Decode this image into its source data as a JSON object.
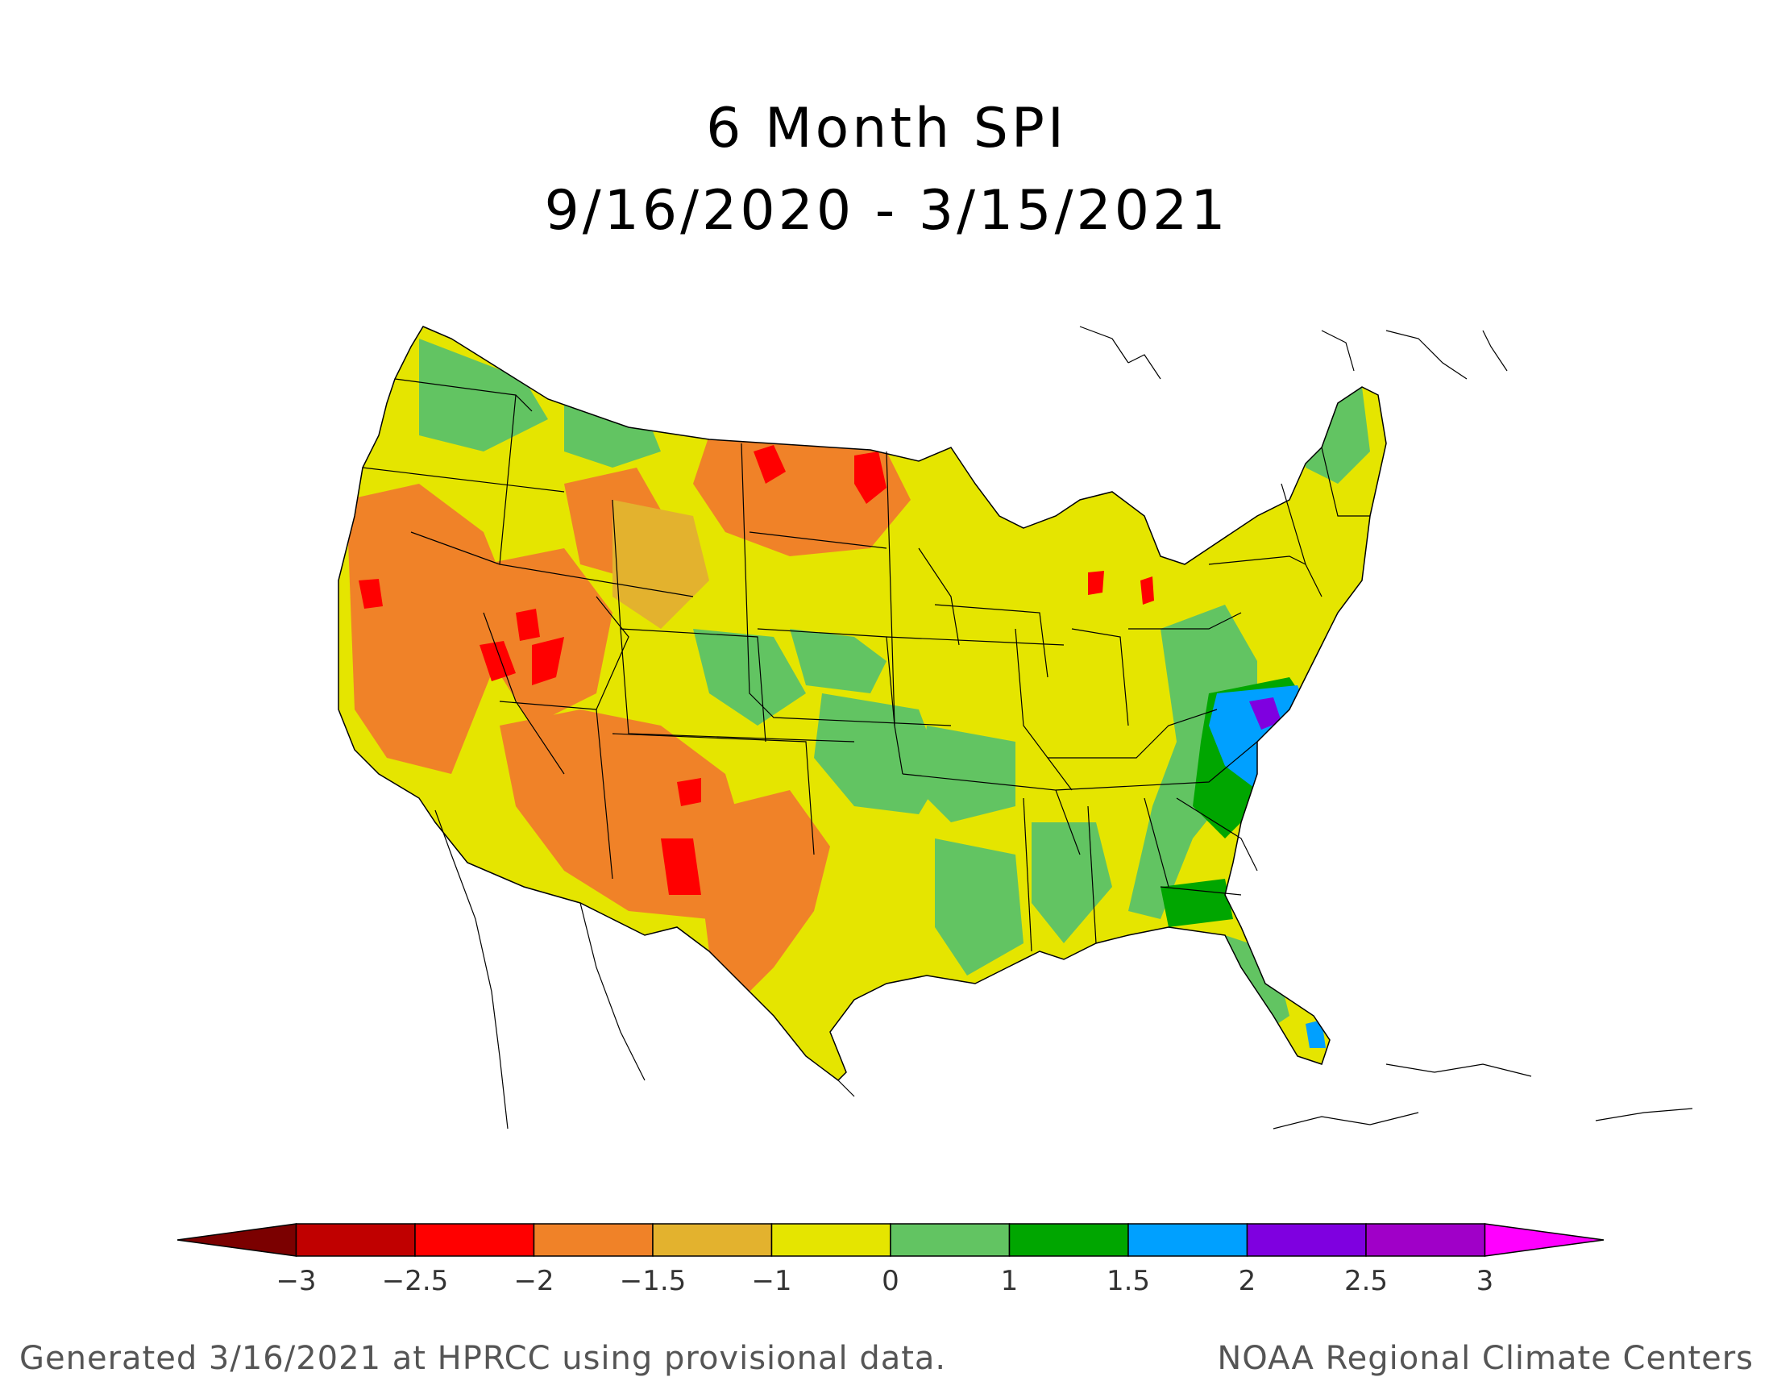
{
  "title": {
    "line1": "6 Month SPI",
    "line2": "9/16/2020 - 3/15/2021"
  },
  "legend": {
    "colors": [
      "#7b0000",
      "#c00000",
      "#ff0000",
      "#f08228",
      "#e3b22e",
      "#e5e500",
      "#62c462",
      "#00a600",
      "#00a0ff",
      "#7f00e0",
      "#a000c8",
      "#ff00ff"
    ],
    "tick_labels": [
      "−3",
      "−2.5",
      "−2",
      "−1.5",
      "−1",
      "0",
      "1",
      "1.5",
      "2",
      "2.5",
      "3"
    ]
  },
  "footer": {
    "left": "Generated 3/16/2021 at HPRCC using provisional data.",
    "right": "NOAA Regional Climate Centers"
  }
}
